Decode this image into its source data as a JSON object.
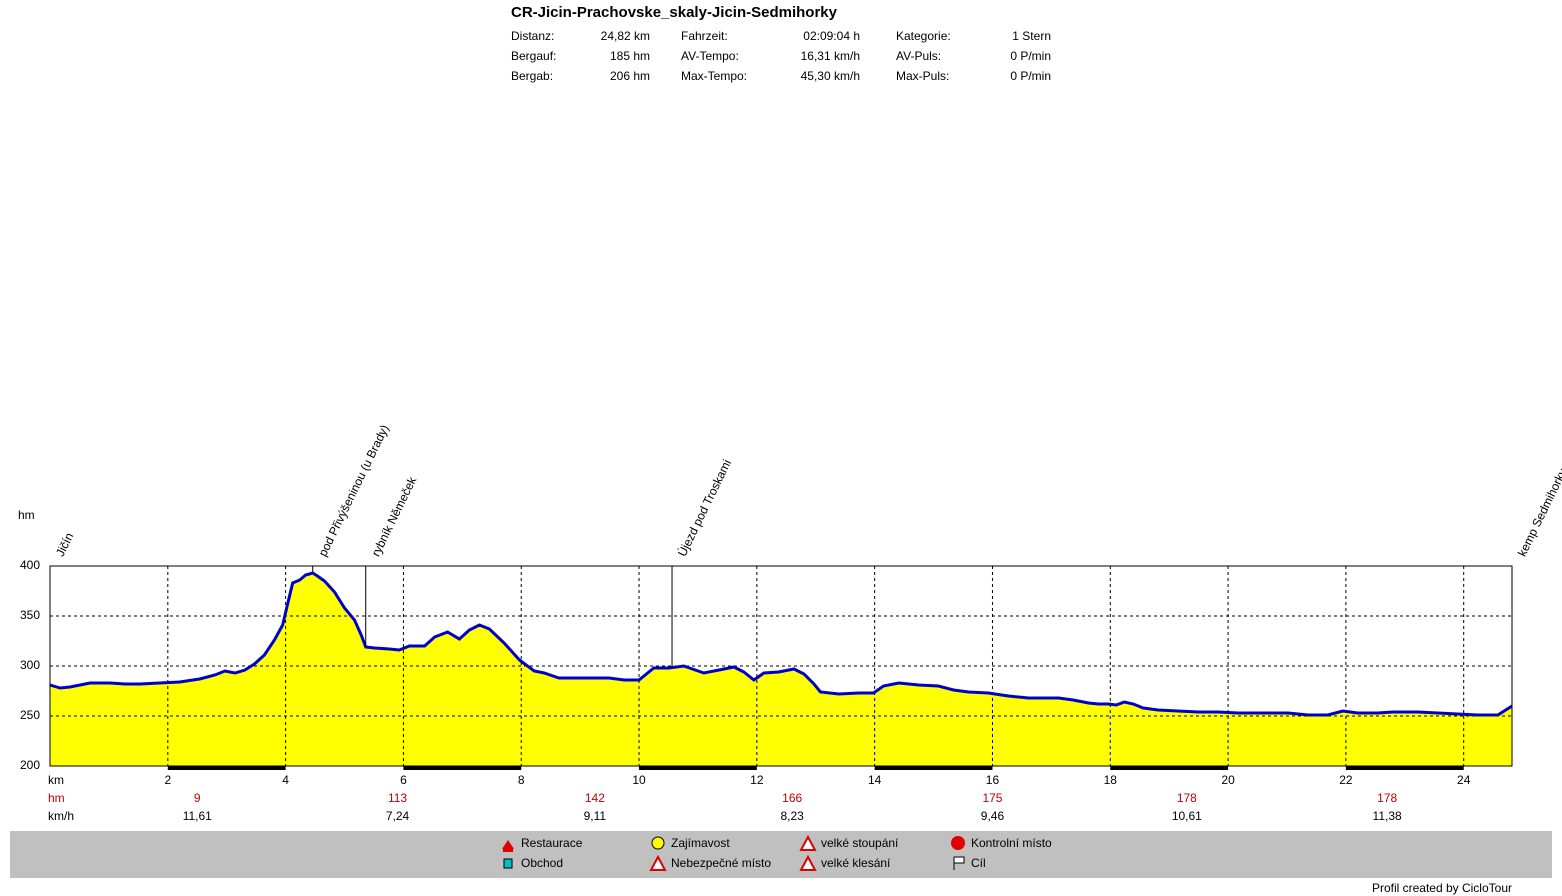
{
  "header": {
    "title": "CR-Jicin-Prachovske_skaly-Jicin-Sedmihorky",
    "stats": [
      [
        "Distanz:",
        "24,82 km",
        "Fahrzeit:",
        "02:09:04 h",
        "Kategorie:",
        "1 Stern"
      ],
      [
        "Bergauf:",
        "185 hm",
        "AV-Tempo:",
        "16,31 km/h",
        "AV-Puls:",
        "0 P/min"
      ],
      [
        "Bergab:",
        "206 hm",
        "Max-Tempo:",
        "45,30 km/h",
        "Max-Puls:",
        "0 P/min"
      ]
    ]
  },
  "chart_data": {
    "type": "area",
    "ylabel": "hm",
    "xlabel": "km",
    "color": "#ffff00",
    "line_color": "#0000cc",
    "grid": true,
    "xlim": [
      0,
      24.82
    ],
    "ylim": [
      200,
      400
    ],
    "xticks": [
      2,
      4,
      6,
      8,
      10,
      12,
      14,
      16,
      18,
      20,
      22,
      24
    ],
    "yticks": [
      200,
      250,
      300,
      350,
      400
    ],
    "x": [
      0,
      0.17,
      0.34,
      0.51,
      0.68,
      1.02,
      1.27,
      1.53,
      1.86,
      2.2,
      2.54,
      2.8,
      2.97,
      3.14,
      3.31,
      3.47,
      3.64,
      3.81,
      3.95,
      4.03,
      4.12,
      4.24,
      4.34,
      4.46,
      4.54,
      4.66,
      4.83,
      5.0,
      5.17,
      5.29,
      5.36,
      5.51,
      5.76,
      5.93,
      6.1,
      6.36,
      6.53,
      6.75,
      6.95,
      7.12,
      7.29,
      7.46,
      7.71,
      7.97,
      8.22,
      8.39,
      8.64,
      8.98,
      9.49,
      9.75,
      10.0,
      10.25,
      10.51,
      10.76,
      11.1,
      11.36,
      11.61,
      11.78,
      11.95,
      12.12,
      12.37,
      12.63,
      12.8,
      12.97,
      13.08,
      13.39,
      13.73,
      13.98,
      14.15,
      14.41,
      14.75,
      15.08,
      15.34,
      15.59,
      15.93,
      16.27,
      16.61,
      17.12,
      17.37,
      17.63,
      17.8,
      17.97,
      18.1,
      18.24,
      18.39,
      18.56,
      18.81,
      19.15,
      19.49,
      19.83,
      20.17,
      20.68,
      21.02,
      21.36,
      21.69,
      21.95,
      22.2,
      22.54,
      22.8,
      23.22,
      23.56,
      23.9,
      24.24,
      24.58,
      24.82
    ],
    "values": [
      281,
      278,
      279,
      281,
      283,
      283,
      282,
      282,
      283,
      284,
      287,
      291,
      295,
      293,
      296,
      302,
      311,
      326,
      341,
      361,
      383,
      386,
      391,
      393,
      390,
      385,
      374,
      358,
      346,
      330,
      319,
      318,
      317,
      316,
      320,
      320,
      329,
      334,
      327,
      336,
      341,
      337,
      323,
      306,
      295,
      293,
      288,
      288,
      288,
      286,
      286,
      298,
      298,
      300,
      293,
      296,
      299,
      294,
      286,
      293,
      294,
      297,
      292,
      282,
      274,
      272,
      273,
      273,
      280,
      283,
      281,
      280,
      276,
      274,
      273,
      270,
      268,
      268,
      266,
      263,
      262,
      262,
      261,
      264,
      262,
      258,
      256,
      255,
      254,
      254,
      253,
      253,
      253,
      251,
      251,
      255,
      253,
      253,
      254,
      254,
      253,
      252,
      251,
      251,
      260
    ],
    "waypoints": [
      {
        "label": "Jičín",
        "x": 0
      },
      {
        "label": "pod Přivýšeninou (u Brady)",
        "x": 4.46
      },
      {
        "label": "rybník Němeček",
        "x": 5.36
      },
      {
        "label": "Újezd pod Troskami",
        "x": 10.56
      },
      {
        "label": "kemp Sedmihorky",
        "x": 24.82
      }
    ],
    "segments": {
      "row_labels": [
        "hm",
        "km/h"
      ],
      "x": [
        2.5,
        5.9,
        9.25,
        12.6,
        16,
        19.3,
        22.7
      ],
      "hm": [
        9,
        113,
        142,
        166,
        175,
        178,
        178
      ],
      "kmh": [
        {
          "value": 11.61,
          "label": "11,61"
        },
        {
          "value": 7.24,
          "label": "7,24"
        },
        {
          "value": 9.11,
          "label": "9,11"
        },
        {
          "value": 8.23,
          "label": "8,23"
        },
        {
          "value": 9.46,
          "label": "9,46"
        },
        {
          "value": 10.61,
          "label": "10,61"
        },
        {
          "value": 11.38,
          "label": "11,38"
        }
      ]
    }
  },
  "legend": [
    "Restaurace",
    "Obchod",
    "Zajímavost",
    "Nebezpečné místo",
    "velké stoupání",
    "velké klesání",
    "Kontrolní místo",
    "Cíl"
  ],
  "footer": "Profil created by CicloTour"
}
